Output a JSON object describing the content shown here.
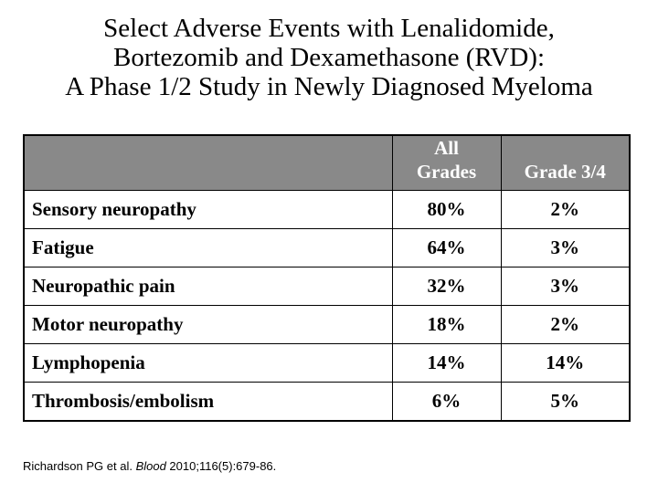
{
  "slide": {
    "title_lines": [
      "Select Adverse Events with Lenalidomide,",
      "Bortezomib and Dexamethasone (RVD):",
      "A Phase 1/2 Study in Newly Diagnosed Myeloma"
    ],
    "table": {
      "columns": [
        "",
        "All\nGrades",
        "Grade 3/4"
      ],
      "rows": [
        {
          "label": "Sensory neuropathy",
          "all_grades": "80%",
          "grade_3_4": "2%"
        },
        {
          "label": "Fatigue",
          "all_grades": "64%",
          "grade_3_4": "3%"
        },
        {
          "label": "Neuropathic pain",
          "all_grades": "32%",
          "grade_3_4": "3%"
        },
        {
          "label": "Motor neuropathy",
          "all_grades": "18%",
          "grade_3_4": "2%"
        },
        {
          "label": "Lymphopenia",
          "all_grades": "14%",
          "grade_3_4": "14%"
        },
        {
          "label": "Thrombosis/embolism",
          "all_grades": "6%",
          "grade_3_4": "5%"
        }
      ]
    },
    "citation": {
      "prefix": "Richardson PG et al. ",
      "journal_italic": "Blood",
      "suffix": " 2010;116(5):679-86."
    },
    "colors": {
      "header_bg": "#898989",
      "header_text": "#ffffff",
      "border": "#000000",
      "body_text": "#000000"
    }
  }
}
